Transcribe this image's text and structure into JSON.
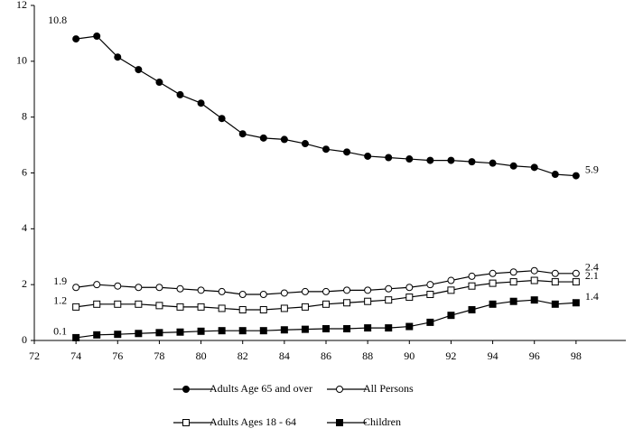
{
  "chart_data": {
    "type": "line",
    "x": [
      74,
      75,
      76,
      77,
      78,
      79,
      80,
      81,
      82,
      83,
      84,
      85,
      86,
      87,
      88,
      89,
      90,
      91,
      92,
      93,
      94,
      95,
      96,
      97,
      98
    ],
    "series": [
      {
        "name": "Adults Age 65 and over",
        "color": "#000000",
        "marker": "circle",
        "filled": true,
        "values": [
          10.8,
          10.9,
          10.15,
          9.7,
          9.25,
          8.8,
          8.5,
          7.95,
          7.4,
          7.25,
          7.2,
          7.05,
          6.85,
          6.75,
          6.6,
          6.55,
          6.5,
          6.45,
          6.45,
          6.4,
          6.35,
          6.25,
          6.2,
          5.95,
          5.9
        ],
        "value_labels": [
          "10.8",
          null,
          null,
          null,
          null,
          null,
          null,
          null,
          null,
          null,
          null,
          null,
          null,
          null,
          null,
          null,
          null,
          null,
          null,
          null,
          null,
          null,
          null,
          null,
          "5.9"
        ]
      },
      {
        "name": "All Persons",
        "color": "#000000",
        "marker": "circle",
        "filled": false,
        "values": [
          1.9,
          2.0,
          1.95,
          1.9,
          1.9,
          1.85,
          1.8,
          1.75,
          1.65,
          1.65,
          1.7,
          1.75,
          1.75,
          1.8,
          1.8,
          1.85,
          1.9,
          2.0,
          2.15,
          2.3,
          2.4,
          2.45,
          2.5,
          2.4,
          2.4
        ],
        "value_labels": [
          "1.9",
          null,
          null,
          null,
          null,
          null,
          null,
          null,
          null,
          null,
          null,
          null,
          null,
          null,
          null,
          null,
          null,
          null,
          null,
          null,
          null,
          null,
          null,
          null,
          "2.4"
        ]
      },
      {
        "name": "Adults Ages 18 - 64",
        "color": "#000000",
        "marker": "square",
        "filled": false,
        "values": [
          1.2,
          1.3,
          1.3,
          1.3,
          1.25,
          1.2,
          1.2,
          1.15,
          1.1,
          1.1,
          1.15,
          1.2,
          1.3,
          1.35,
          1.4,
          1.45,
          1.55,
          1.65,
          1.8,
          1.95,
          2.05,
          2.1,
          2.15,
          2.1,
          2.1
        ],
        "value_labels": [
          "1.2",
          null,
          null,
          null,
          null,
          null,
          null,
          null,
          null,
          null,
          null,
          null,
          null,
          null,
          null,
          null,
          null,
          null,
          null,
          null,
          null,
          null,
          null,
          null,
          "2.1"
        ]
      },
      {
        "name": "Children",
        "color": "#000000",
        "marker": "square",
        "filled": true,
        "values": [
          0.1,
          0.2,
          0.22,
          0.25,
          0.28,
          0.3,
          0.33,
          0.35,
          0.35,
          0.35,
          0.38,
          0.4,
          0.42,
          0.42,
          0.45,
          0.45,
          0.5,
          0.65,
          0.9,
          1.1,
          1.3,
          1.4,
          1.45,
          1.3,
          1.35
        ],
        "value_labels": [
          "0.1",
          null,
          null,
          null,
          null,
          null,
          null,
          null,
          null,
          null,
          null,
          null,
          null,
          null,
          null,
          null,
          null,
          null,
          null,
          null,
          null,
          null,
          null,
          null,
          "1.4"
        ]
      }
    ],
    "xlim": [
      72,
      100
    ],
    "xticks": [
      72,
      74,
      76,
      78,
      80,
      82,
      84,
      86,
      88,
      90,
      92,
      94,
      96,
      98
    ],
    "ylim": [
      0,
      12
    ],
    "yticks": [
      0,
      2,
      4,
      6,
      8,
      10,
      12
    ],
    "grid": false,
    "legend": "bottom"
  }
}
